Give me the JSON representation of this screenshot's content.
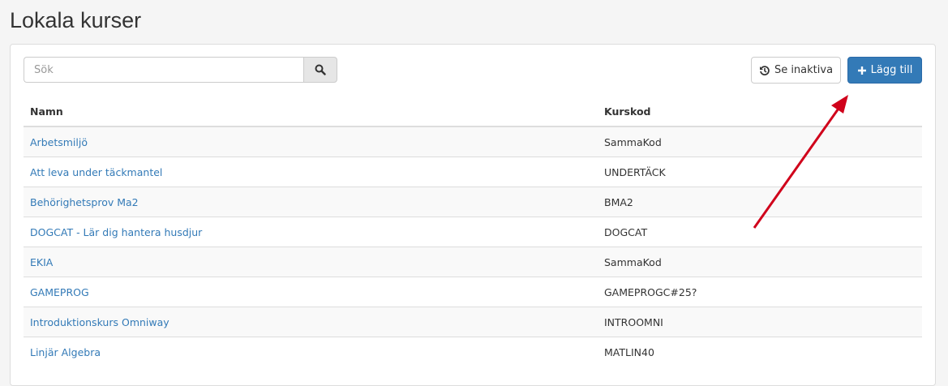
{
  "page": {
    "title": "Lokala kurser"
  },
  "search": {
    "placeholder": "Sök",
    "icon": "search-icon"
  },
  "toolbar": {
    "inactive_label": "Se inaktiva",
    "add_label": "Lägg till",
    "accent": "#337ab7"
  },
  "table": {
    "headers": [
      "Namn",
      "Kurskod"
    ],
    "rows": [
      {
        "name": "Arbetsmiljö",
        "code": "SammaKod"
      },
      {
        "name": "Att leva under täckmantel",
        "code": "UNDERTÄCK"
      },
      {
        "name": "Behörighetsprov Ma2",
        "code": "BMA2"
      },
      {
        "name": "DOGCAT - Lär dig hantera husdjur",
        "code": "DOGCAT"
      },
      {
        "name": "EKIA",
        "code": "SammaKod"
      },
      {
        "name": "GAMEPROG",
        "code": "GAMEPROGC#25?"
      },
      {
        "name": "Introduktionskurs Omniway",
        "code": "INTROOMNI"
      },
      {
        "name": "Linjär Algebra",
        "code": "MATLIN40"
      }
    ]
  },
  "annotation": {
    "arrow_color": "#d0021b"
  }
}
